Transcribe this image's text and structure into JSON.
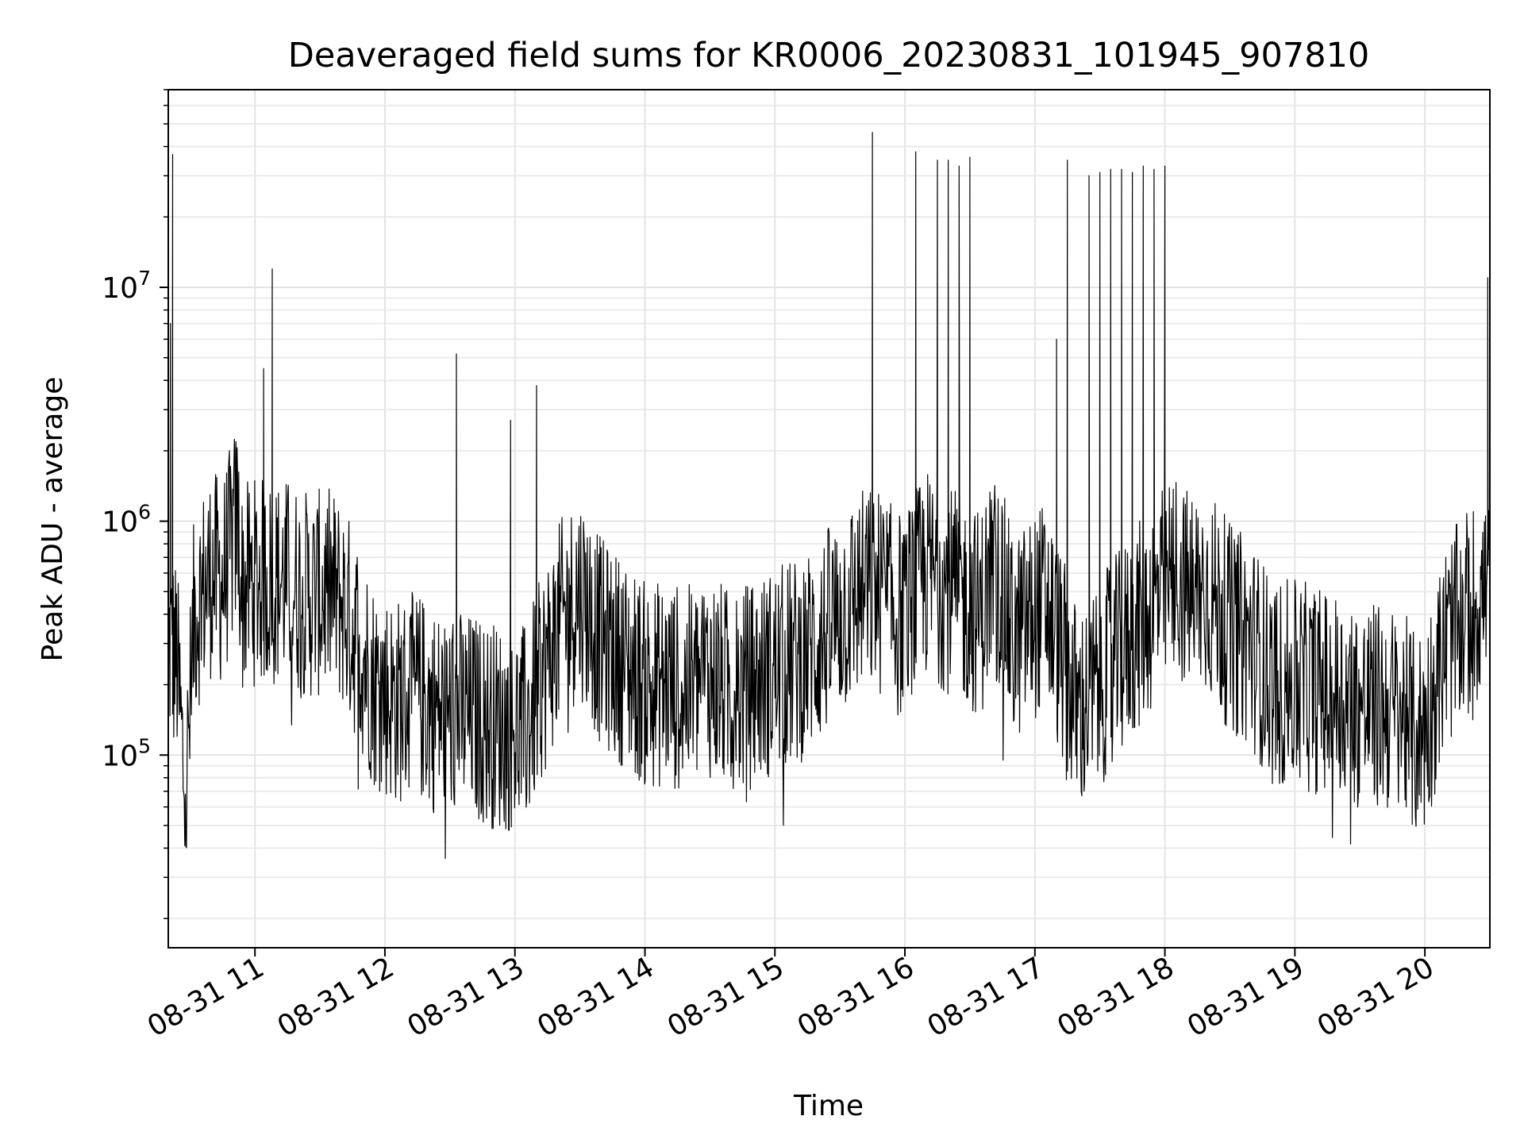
{
  "chart_data": {
    "type": "line",
    "title": "Deaveraged field sums for KR0006_20230831_101945_907810",
    "xlabel": "Time",
    "ylabel": "Peak ADU - average",
    "yscale": "log",
    "xlim": [
      "08-31 10:20",
      "08-31 20:30"
    ],
    "ylim": [
      15000,
      70000000
    ],
    "grid": true,
    "xticks": [
      {
        "value": "08-31 11:00",
        "label": "08-31 11"
      },
      {
        "value": "08-31 12:00",
        "label": "08-31 12"
      },
      {
        "value": "08-31 13:00",
        "label": "08-31 13"
      },
      {
        "value": "08-31 14:00",
        "label": "08-31 14"
      },
      {
        "value": "08-31 15:00",
        "label": "08-31 15"
      },
      {
        "value": "08-31 16:00",
        "label": "08-31 16"
      },
      {
        "value": "08-31 17:00",
        "label": "08-31 17"
      },
      {
        "value": "08-31 18:00",
        "label": "08-31 18"
      },
      {
        "value": "08-31 19:00",
        "label": "08-31 19"
      },
      {
        "value": "08-31 20:00",
        "label": "08-31 20"
      }
    ],
    "yticks": [
      {
        "value": 100000,
        "base": "10",
        "exp": "5"
      },
      {
        "value": 1000000,
        "base": "10",
        "exp": "6"
      },
      {
        "value": 10000000,
        "base": "10",
        "exp": "7"
      }
    ],
    "line_color": "#000000",
    "series": [
      {
        "name": "",
        "x": [
          "08-31 10:20",
          "08-31 10:21",
          "08-31 10:22",
          "08-31 10:24",
          "08-31 10:28",
          "08-31 10:32",
          "08-31 10:36",
          "08-31 10:40",
          "08-31 10:45",
          "08-31 10:52",
          "08-31 10:54",
          "08-31 10:58",
          "08-31 11:04",
          "08-31 11:08",
          "08-31 11:15",
          "08-31 11:25",
          "08-31 11:35",
          "08-31 11:40",
          "08-31 11:48",
          "08-31 11:55",
          "08-31 12:05",
          "08-31 12:15",
          "08-31 12:25",
          "08-31 12:33",
          "08-31 12:35",
          "08-31 12:45",
          "08-31 12:55",
          "08-31 12:58",
          "08-31 13:05",
          "08-31 13:10",
          "08-31 13:20",
          "08-31 13:30",
          "08-31 13:40",
          "08-31 13:50",
          "08-31 14:00",
          "08-31 14:10",
          "08-31 14:20",
          "08-31 14:30",
          "08-31 14:40",
          "08-31 14:50",
          "08-31 15:00",
          "08-31 15:10",
          "08-31 15:20",
          "08-31 15:30",
          "08-31 15:40",
          "08-31 15:45",
          "08-31 15:50",
          "08-31 15:55",
          "08-31 16:00",
          "08-31 16:05",
          "08-31 16:10",
          "08-31 16:15",
          "08-31 16:20",
          "08-31 16:25",
          "08-31 16:30",
          "08-31 16:35",
          "08-31 16:40",
          "08-31 16:45",
          "08-31 16:50",
          "08-31 16:55",
          "08-31 17:00",
          "08-31 17:05",
          "08-31 17:10",
          "08-31 17:15",
          "08-31 17:20",
          "08-31 17:25",
          "08-31 17:30",
          "08-31 17:35",
          "08-31 17:40",
          "08-31 17:45",
          "08-31 17:50",
          "08-31 17:55",
          "08-31 18:00",
          "08-31 18:05",
          "08-31 18:10",
          "08-31 18:20",
          "08-31 18:30",
          "08-31 18:40",
          "08-31 18:50",
          "08-31 19:00",
          "08-31 19:10",
          "08-31 19:20",
          "08-31 19:30",
          "08-31 19:40",
          "08-31 19:50",
          "08-31 19:55",
          "08-31 20:00",
          "08-31 20:10",
          "08-31 20:15",
          "08-31 20:20",
          "08-31 20:28",
          "08-31 20:29",
          "08-31 20:30"
        ],
        "y": [
          300000,
          7000000,
          37000000,
          250000,
          60000,
          400000,
          500000,
          600000,
          550000,
          1000000,
          500000,
          550000,
          4500000,
          12000000,
          550000,
          480000,
          500000,
          450000,
          300000,
          200000,
          170000,
          180000,
          150000,
          5200000,
          150000,
          140000,
          130000,
          2700000,
          130000,
          3800000,
          350000,
          500000,
          300000,
          250000,
          200000,
          200000,
          190000,
          220000,
          180000,
          200000,
          230000,
          250000,
          300000,
          400000,
          500000,
          46000000,
          500000,
          400000,
          400000,
          38000000,
          600000,
          35000000,
          35000000,
          33000000,
          36000000,
          400000,
          600000,
          500000,
          300000,
          350000,
          400000,
          450000,
          6000000,
          35000000,
          150000,
          30000000,
          31000000,
          32000000,
          32000000,
          31000000,
          33000000,
          32000000,
          33000000,
          600000,
          500000,
          500000,
          350000,
          300000,
          200000,
          200000,
          190000,
          180000,
          160000,
          160000,
          150000,
          120000,
          130000,
          300000,
          350000,
          400000,
          500000,
          11000000,
          700000
        ]
      }
    ]
  }
}
